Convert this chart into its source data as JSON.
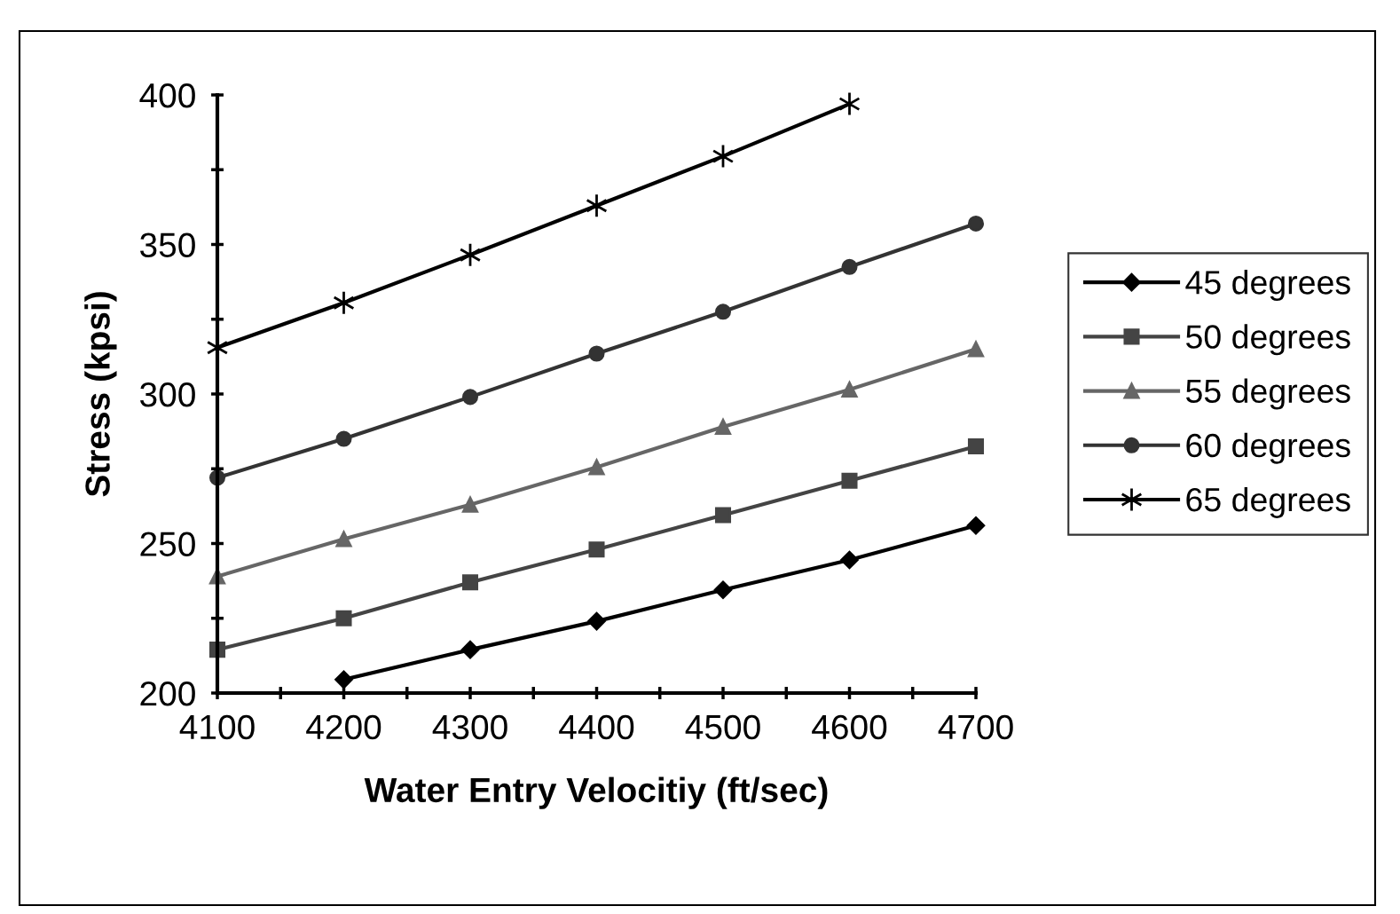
{
  "chart_data": {
    "type": "line",
    "xlabel": "Water Entry Velocitiy (ft/sec)",
    "ylabel": "Stress (kpsi)",
    "x": [
      4100,
      4200,
      4300,
      4400,
      4500,
      4600,
      4700
    ],
    "series": [
      {
        "name": "45 degrees",
        "color": "#000000",
        "marker": "diamond",
        "values": [
          null,
          204.5,
          214.5,
          224,
          234.5,
          244.5,
          256
        ]
      },
      {
        "name": "50 degrees",
        "color": "#444444",
        "marker": "square",
        "values": [
          214.5,
          225,
          237,
          248,
          259.5,
          271,
          282.5
        ]
      },
      {
        "name": "55 degrees",
        "color": "#666666",
        "marker": "triangle",
        "values": [
          239,
          251.5,
          263,
          275.5,
          289,
          301.5,
          315
        ]
      },
      {
        "name": "60 degrees",
        "color": "#333333",
        "marker": "circle",
        "values": [
          272,
          285,
          299,
          313.5,
          327.5,
          342.5,
          357
        ]
      },
      {
        "name": "65 degrees",
        "color": "#000000",
        "marker": "cross",
        "values": [
          315.5,
          330.5,
          346.5,
          363,
          379.5,
          397,
          null
        ]
      }
    ],
    "xlim": [
      4100,
      4700
    ],
    "xticks": [
      4100,
      {
        "value": 4150,
        "label": null
      },
      4200,
      {
        "value": 4250,
        "label": null
      },
      4300,
      {
        "value": 4350,
        "label": null
      },
      4400,
      {
        "value": 4450,
        "label": null
      },
      4500,
      {
        "value": 4550,
        "label": null
      },
      4600,
      {
        "value": 4650,
        "label": null
      },
      4700
    ],
    "ylim": [
      200,
      400
    ],
    "yticks": [
      200,
      {
        "value": 225,
        "label": null
      },
      250,
      {
        "value": 275,
        "label": null
      },
      300,
      {
        "value": 325,
        "label": null
      },
      350,
      {
        "value": 375,
        "label": null
      },
      400
    ],
    "grid": false,
    "legend": "right",
    "line_style": "solid"
  }
}
